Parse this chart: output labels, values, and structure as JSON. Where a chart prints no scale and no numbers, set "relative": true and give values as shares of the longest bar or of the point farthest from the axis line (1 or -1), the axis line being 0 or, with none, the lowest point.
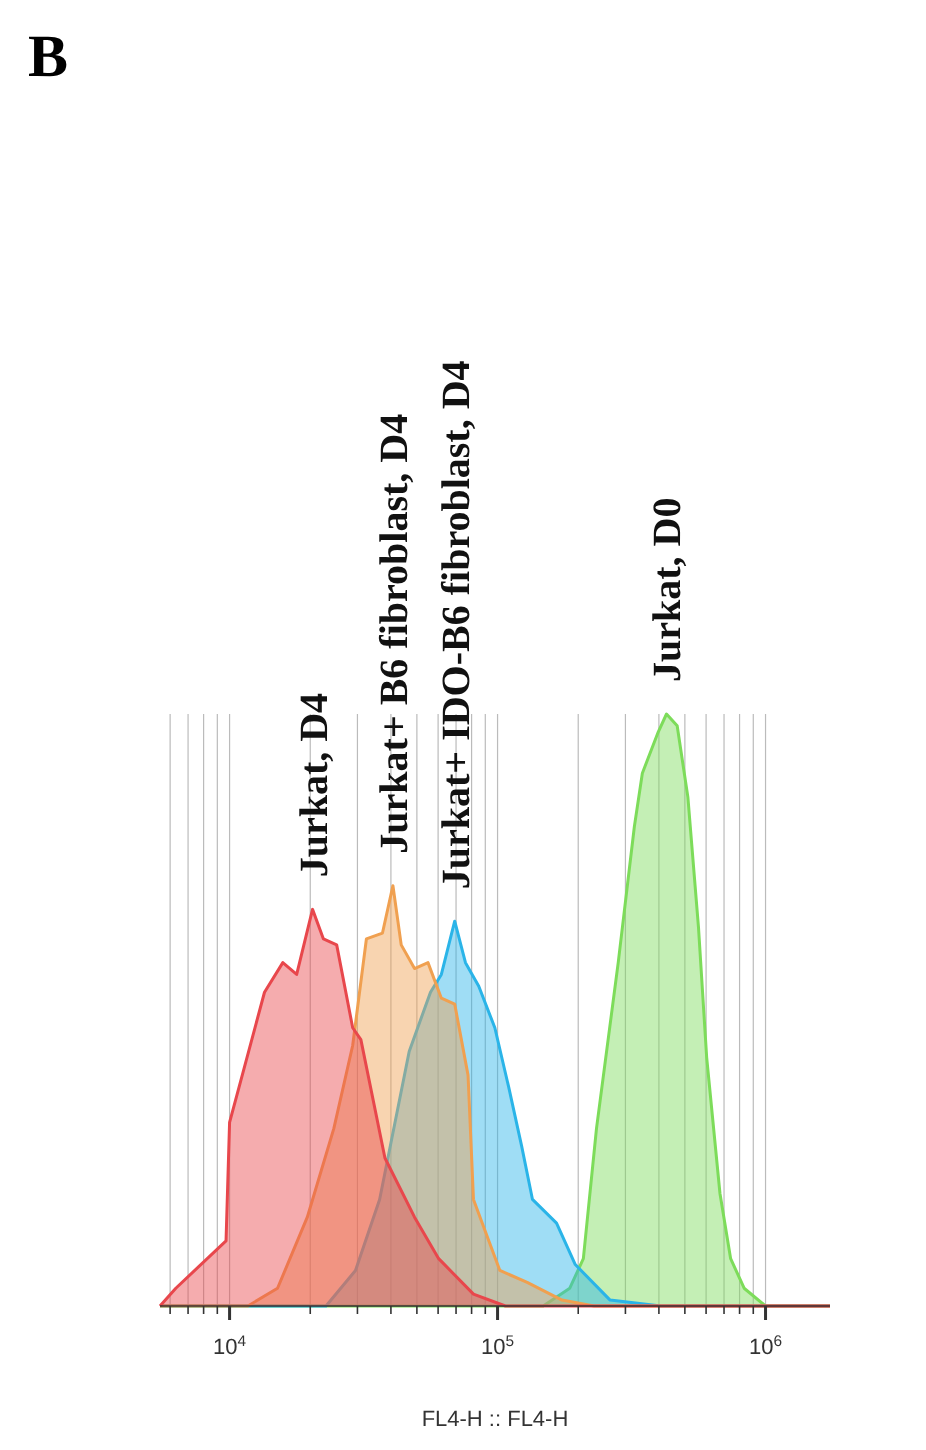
{
  "chart_data": {
    "type": "area",
    "title": "B",
    "xlabel": "FL4-H :: FL4-H",
    "log": "x",
    "relative": true,
    "grid": "x",
    "xlim": [
      5500,
      1740000
    ],
    "xticks": [
      {
        "value": 6000,
        "label": null
      },
      {
        "value": 7000,
        "label": null
      },
      {
        "value": 8000,
        "label": null
      },
      {
        "value": 9000,
        "label": null
      },
      {
        "value": 10000,
        "label": "10$^{4}$"
      },
      {
        "value": 20000,
        "label": null
      },
      {
        "value": 30000,
        "label": null
      },
      {
        "value": 40000,
        "label": null
      },
      {
        "value": 50000,
        "label": null
      },
      {
        "value": 60000,
        "label": null
      },
      {
        "value": 70000,
        "label": null
      },
      {
        "value": 80000,
        "label": null
      },
      {
        "value": 90000,
        "label": null
      },
      {
        "value": 100000,
        "label": "10$^{5}$"
      },
      {
        "value": 200000,
        "label": null
      },
      {
        "value": 300000,
        "label": null
      },
      {
        "value": 400000,
        "label": null
      },
      {
        "value": 500000,
        "label": null
      },
      {
        "value": 600000,
        "label": null
      },
      {
        "value": 700000,
        "label": null
      },
      {
        "value": 800000,
        "label": null
      },
      {
        "value": 900000,
        "label": null
      },
      {
        "value": 1000000,
        "label": "10$^{6}$"
      }
    ],
    "series": [
      {
        "name": "Jurkat, D4",
        "color": "#e8474c",
        "x": [
          5500,
          6300,
          9700,
          10000,
          11000,
          13500,
          15800,
          17800,
          20400,
          22400,
          25100,
          28800,
          30900,
          38000,
          49000,
          60300,
          81300,
          107000,
          1740000
        ],
        "values": [
          0,
          0.03,
          0.11,
          0.31,
          0.38,
          0.53,
          0.58,
          0.56,
          0.67,
          0.62,
          0.61,
          0.47,
          0.45,
          0.25,
          0.15,
          0.08,
          0.02,
          0,
          0
        ]
      },
      {
        "name": "Jurkat+ B6 fibroblast, D4",
        "color": "#f0a050",
        "x": [
          5500,
          11700,
          15100,
          19500,
          24500,
          28800,
          32400,
          37200,
          40700,
          43700,
          49000,
          55000,
          61700,
          69200,
          77600,
          81300,
          102000,
          129000,
          174000,
          229000,
          1740000
        ],
        "values": [
          0,
          0,
          0.03,
          0.15,
          0.3,
          0.44,
          0.62,
          0.63,
          0.71,
          0.61,
          0.57,
          0.58,
          0.52,
          0.51,
          0.39,
          0.18,
          0.06,
          0.04,
          0.01,
          0,
          0
        ]
      },
      {
        "name": "Jurkat+ IDO-B6 fibroblast, D4",
        "color": "#2ab4e8",
        "x": [
          5500,
          22900,
          29500,
          36300,
          46800,
          56200,
          61700,
          69200,
          75900,
          85100,
          97700,
          110000,
          123000,
          135000,
          166000,
          195000,
          263000,
          407000,
          1740000
        ],
        "values": [
          0,
          0,
          0.06,
          0.18,
          0.43,
          0.53,
          0.56,
          0.65,
          0.58,
          0.54,
          0.47,
          0.37,
          0.27,
          0.18,
          0.14,
          0.07,
          0.01,
          0,
          0
        ]
      },
      {
        "name": "Jurkat, D0",
        "color": "#7ddc5a",
        "x": [
          5500,
          148000,
          186000,
          209000,
          234000,
          282000,
          324000,
          347000,
          398000,
          427000,
          468000,
          513000,
          562000,
          603000,
          676000,
          741000,
          832000,
          1000000,
          1740000
        ],
        "values": [
          0,
          0,
          0.03,
          0.08,
          0.3,
          0.58,
          0.81,
          0.9,
          0.97,
          1,
          0.98,
          0.86,
          0.64,
          0.42,
          0.19,
          0.08,
          0.03,
          0,
          0
        ]
      }
    ]
  }
}
